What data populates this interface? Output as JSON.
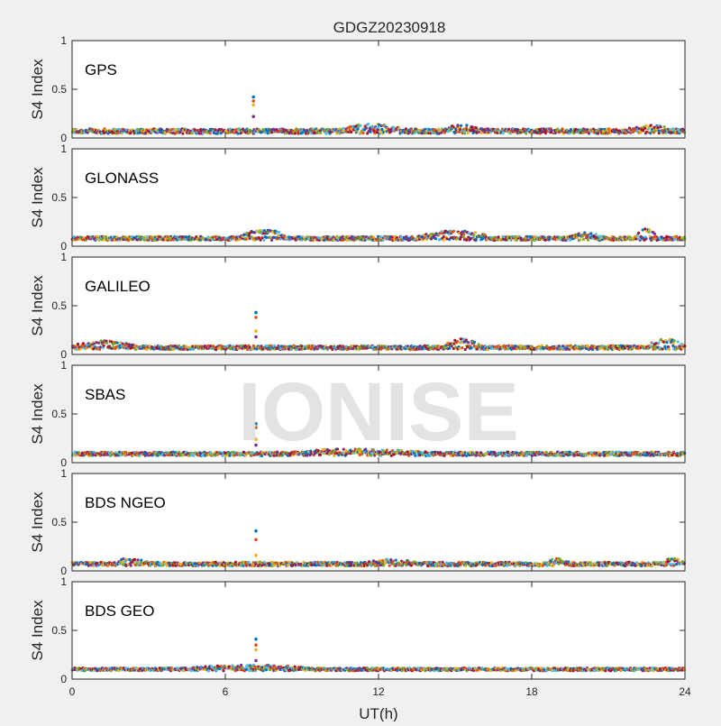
{
  "figure": {
    "title": "GDGZ20230918",
    "xlabel": "UT(h)",
    "ylabel": "S4 Index",
    "watermark": "IONISE"
  },
  "colors": {
    "background": "#f0f0f0",
    "axes_background": "#ffffff",
    "watermark": "#d9d9d9",
    "palette": [
      "#0072BD",
      "#D95319",
      "#EDB120",
      "#7E2F8E",
      "#77AC30",
      "#4DBEEE",
      "#A2142F"
    ]
  },
  "chart_data": [
    {
      "type": "scatter",
      "panel_label": "GPS",
      "xlim": [
        0,
        24
      ],
      "ylim": [
        0,
        1
      ],
      "xticks": [
        "0",
        "6",
        "12",
        "18",
        "24"
      ],
      "yticks": [
        "0",
        "0.5",
        "1"
      ],
      "baseline": {
        "level": 0.07,
        "spread": 0.025
      },
      "bumps": [
        [
          10.5,
          13.0,
          0.12
        ],
        [
          14.5,
          16.0,
          0.11
        ],
        [
          21.5,
          23.5,
          0.11
        ]
      ],
      "spike": {
        "x": 7.1,
        "values": [
          0.42,
          0.38,
          0.34,
          0.22
        ]
      }
    },
    {
      "type": "scatter",
      "panel_label": "GLONASS",
      "xlim": [
        0,
        24
      ],
      "ylim": [
        0,
        1
      ],
      "xticks": [
        "0",
        "6",
        "12",
        "18",
        "24"
      ],
      "yticks": [
        "0",
        "0.5",
        "1"
      ],
      "baseline": {
        "level": 0.08,
        "spread": 0.02
      },
      "bumps": [
        [
          6.5,
          8.5,
          0.15
        ],
        [
          13.5,
          16.5,
          0.14
        ],
        [
          19.5,
          20.8,
          0.12
        ],
        [
          22.0,
          23.0,
          0.16
        ]
      ],
      "spike": null
    },
    {
      "type": "scatter",
      "panel_label": "GALILEO",
      "xlim": [
        0,
        24
      ],
      "ylim": [
        0,
        1
      ],
      "xticks": [
        "0",
        "6",
        "12",
        "18",
        "24"
      ],
      "yticks": [
        "0",
        "0.5",
        "1"
      ],
      "baseline": {
        "level": 0.07,
        "spread": 0.02
      },
      "bumps": [
        [
          0.0,
          2.5,
          0.12
        ],
        [
          14.5,
          16.0,
          0.14
        ],
        [
          22.5,
          24.0,
          0.14
        ]
      ],
      "spike": {
        "x": 7.2,
        "values": [
          0.43,
          0.38,
          0.24,
          0.18
        ]
      }
    },
    {
      "type": "scatter",
      "panel_label": "SBAS",
      "xlim": [
        0,
        24
      ],
      "ylim": [
        0,
        1
      ],
      "xticks": [
        "0",
        "6",
        "12",
        "18",
        "24"
      ],
      "yticks": [
        "0",
        "0.5",
        "1"
      ],
      "baseline": {
        "level": 0.09,
        "spread": 0.02
      },
      "bumps": [
        [
          8.0,
          14.0,
          0.12
        ]
      ],
      "spike": {
        "x": 7.2,
        "values": [
          0.4,
          0.36,
          0.24,
          0.18
        ]
      }
    },
    {
      "type": "scatter",
      "panel_label": "BDS NGEO",
      "xlim": [
        0,
        24
      ],
      "ylim": [
        0,
        1
      ],
      "xticks": [
        "0",
        "6",
        "12",
        "18",
        "24"
      ],
      "yticks": [
        "0",
        "0.5",
        "1"
      ],
      "baseline": {
        "level": 0.07,
        "spread": 0.02
      },
      "bumps": [
        [
          1.5,
          3.0,
          0.11
        ],
        [
          11.5,
          13.5,
          0.1
        ],
        [
          18.5,
          19.5,
          0.11
        ],
        [
          23.0,
          24.0,
          0.11
        ]
      ],
      "spike": {
        "x": 7.2,
        "values": [
          0.41,
          0.32,
          0.16
        ]
      }
    },
    {
      "type": "scatter",
      "panel_label": "BDS GEO",
      "xlim": [
        0,
        24
      ],
      "ylim": [
        0,
        1
      ],
      "xticks": [
        "0",
        "6",
        "12",
        "18",
        "24"
      ],
      "yticks": [
        "0",
        "0.5",
        "1"
      ],
      "baseline": {
        "level": 0.1,
        "spread": 0.015
      },
      "bumps": [
        [
          4.5,
          9.5,
          0.13
        ]
      ],
      "spike": {
        "x": 7.2,
        "values": [
          0.41,
          0.35,
          0.3,
          0.19
        ]
      }
    }
  ]
}
